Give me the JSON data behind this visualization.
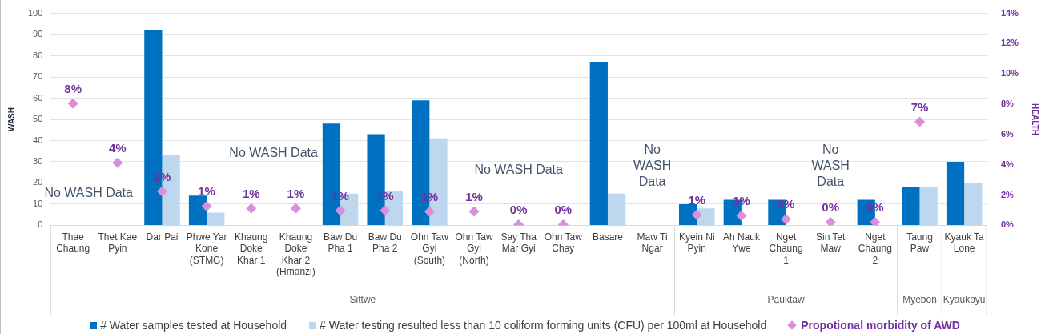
{
  "chart_data": {
    "type": "bar",
    "categories": [
      "Thae Chaung",
      "Thet Kae Pyin",
      "Dar Pai",
      "Phwe Yar Kone (STMG)",
      "Khaung Doke Khar 1",
      "Khaung Doke Khar 2 (Hmanzi)",
      "Baw Du Pha 1",
      "Baw Du Pha 2",
      "Ohn Taw Gyi (South)",
      "Ohn Taw Gyi (North)",
      "Say Tha Mar Gyi",
      "Ohn Taw Chay",
      "Basare",
      "Maw Ti Ngar",
      "Kyein Ni Pyin",
      "Ah Nauk Ywe",
      "Nget Chaung 1",
      "Sin Tet Maw",
      "Nget Chaung 2",
      "Taung Paw",
      "Kyauk Ta Lone"
    ],
    "series": [
      {
        "name": "# Water samples tested at Household",
        "color": "#0070c0",
        "values": [
          null,
          null,
          92,
          14,
          null,
          null,
          48,
          43,
          59,
          null,
          null,
          null,
          77,
          null,
          10,
          12,
          12,
          null,
          12,
          18,
          30
        ]
      },
      {
        "name": "# Water testing resulted less than 10 coliform forming units (CFU) per 100ml  at Household",
        "color": "#bdd7ee",
        "values": [
          null,
          null,
          33,
          6,
          null,
          null,
          15,
          16,
          41,
          null,
          null,
          null,
          15,
          null,
          8,
          null,
          null,
          null,
          null,
          18,
          20
        ]
      },
      {
        "name": "Propotional morbidity of AWD",
        "type": "scatter",
        "axis": "y2",
        "color": "#da8fdc",
        "marker": "diamond",
        "values": [
          8.05,
          4.13,
          2.24,
          1.26,
          1.12,
          1.12,
          0.98,
          0.98,
          0.91,
          0.91,
          0.05,
          0.05,
          null,
          null,
          0.7,
          0.63,
          0.4,
          0.21,
          0.21,
          6.84,
          null
        ],
        "value_labels": [
          "8%",
          "4%",
          "2%",
          "1%",
          "1%",
          "1%",
          "1%",
          "1%",
          "1%",
          "1%",
          "0%",
          "0%",
          null,
          null,
          "1%",
          "1%",
          "0%",
          "0%",
          "0%",
          "7%",
          null
        ]
      }
    ],
    "ylabel": "WASH",
    "y2label": "HEALTH",
    "ylim": [
      0,
      100
    ],
    "yticks": [
      0,
      10,
      20,
      30,
      40,
      50,
      60,
      70,
      80,
      90,
      100
    ],
    "y2lim": [
      0,
      14
    ],
    "y2ticks": [
      {
        "value": 0,
        "label": "0%"
      },
      {
        "value": 2,
        "label": "2%"
      },
      {
        "value": 4,
        "label": "4%"
      },
      {
        "value": 6,
        "label": "6%"
      },
      {
        "value": 8,
        "label": "8%"
      },
      {
        "value": 10,
        "label": "10%"
      },
      {
        "value": 12,
        "label": "12%"
      },
      {
        "value": 14,
        "label": "14%"
      }
    ],
    "grid": "y",
    "legend": "bottom",
    "annotations": [
      "No WASH Data",
      "No WASH Data",
      "No WASH Data",
      "No WASH Data",
      "No WASH Data",
      "Sittwe",
      "Pauktaw",
      "Myebon",
      "Kyaukpyu"
    ]
  }
}
